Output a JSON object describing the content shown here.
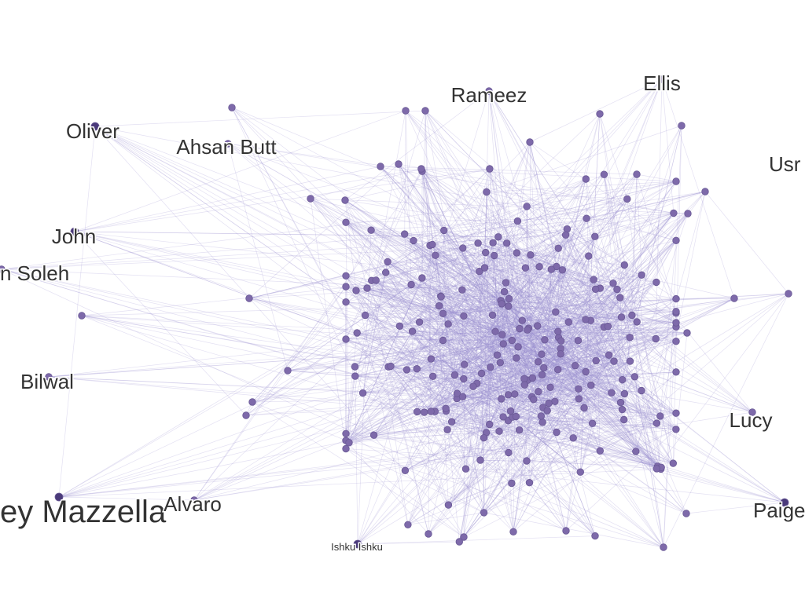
{
  "graph": {
    "node_color": "#7e6aaa",
    "hub_color": "#4a3a7a",
    "edge_color": "#9b8fd0",
    "background": "#ffffff",
    "labels": [
      {
        "id": "rameez",
        "text": "Rameez"
      },
      {
        "id": "ellis",
        "text": "Ellis"
      },
      {
        "id": "oliver",
        "text": "Oliver"
      },
      {
        "id": "ahsan",
        "text": "Ahsan Butt"
      },
      {
        "id": "usr",
        "text": "Usr"
      },
      {
        "id": "john",
        "text": "John"
      },
      {
        "id": "soleh",
        "text": "n Soleh"
      },
      {
        "id": "bilwal",
        "text": "Bilwal"
      },
      {
        "id": "lucy",
        "text": "Lucy"
      },
      {
        "id": "mazzella",
        "text": "ey Mazzella"
      },
      {
        "id": "alvaro",
        "text": "Alvaro"
      },
      {
        "id": "paige",
        "text": "Paige"
      },
      {
        "id": "ishku",
        "text": "Ishku Ishku"
      }
    ]
  }
}
